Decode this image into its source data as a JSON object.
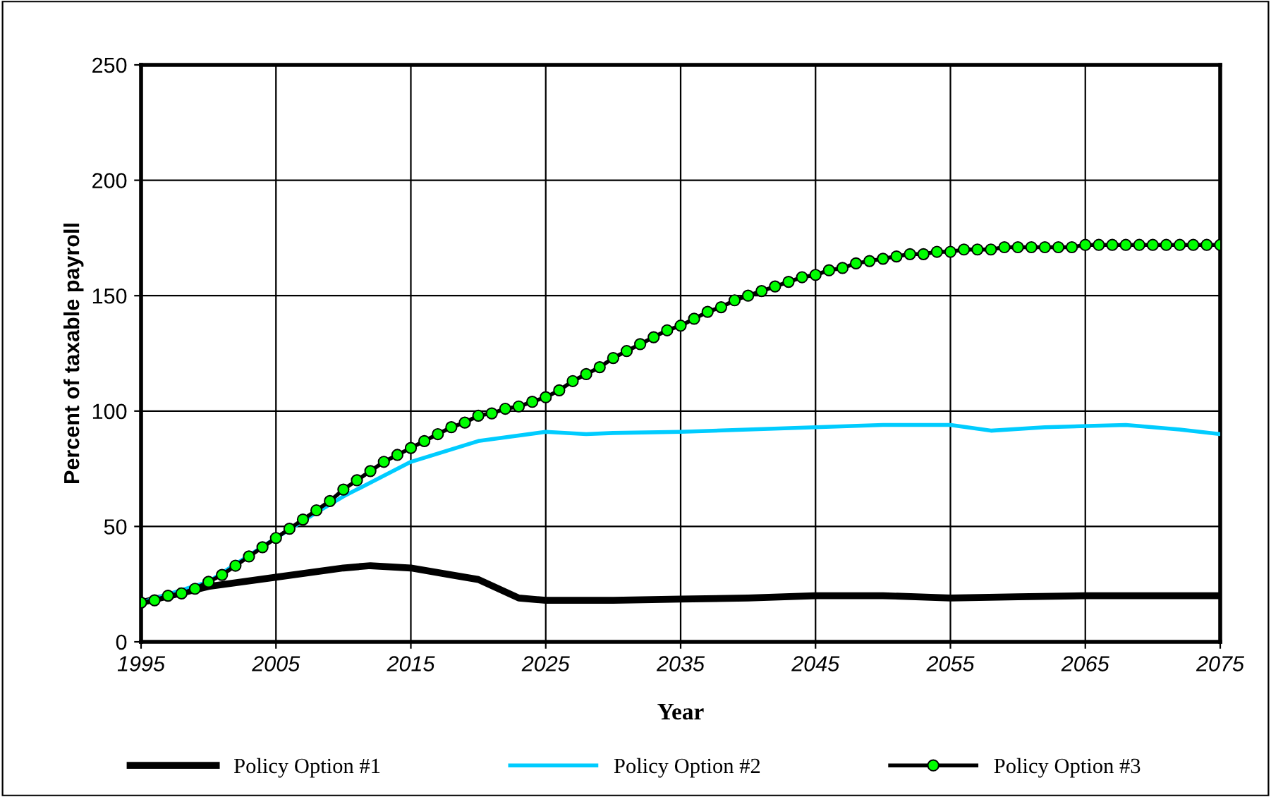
{
  "chart_data": {
    "type": "line",
    "xlabel": "Year",
    "ylabel": "Percent of taxable payroll",
    "xlim": [
      1995,
      2075
    ],
    "xticks": [
      1995,
      2005,
      2015,
      2025,
      2035,
      2045,
      2055,
      2065,
      2075
    ],
    "ylim": [
      0,
      250
    ],
    "yticks": [
      0,
      50,
      100,
      150,
      200,
      250
    ],
    "grid": true,
    "legend": "bottom",
    "series": [
      {
        "name": "Policy Option #1",
        "color": "#000000",
        "x": [
          1995,
          2000,
          2005,
          2010,
          2012,
          2015,
          2018,
          2020,
          2023,
          2025,
          2030,
          2035,
          2040,
          2045,
          2050,
          2055,
          2060,
          2065,
          2070,
          2075
        ],
        "values": [
          17,
          24,
          28,
          32,
          33,
          32,
          29,
          27,
          19,
          18,
          18,
          18.5,
          19,
          20,
          20,
          19,
          19.5,
          20,
          20,
          20
        ]
      },
      {
        "name": "Policy Option #2",
        "color": "#00ccff",
        "x": [
          1995,
          2000,
          2005,
          2008,
          2010,
          2015,
          2020,
          2025,
          2028,
          2030,
          2035,
          2040,
          2045,
          2050,
          2055,
          2058,
          2062,
          2068,
          2072,
          2075
        ],
        "values": [
          17,
          26,
          45,
          56,
          63,
          78,
          87,
          91,
          90,
          90.5,
          91,
          92,
          93,
          94,
          94,
          91.5,
          93,
          94,
          92,
          90
        ]
      },
      {
        "name": "Policy Option #3",
        "color": "#00ff00",
        "marker": "circle",
        "x": [
          1995,
          1996,
          1997,
          1998,
          1999,
          2000,
          2001,
          2002,
          2003,
          2004,
          2005,
          2006,
          2007,
          2008,
          2009,
          2010,
          2011,
          2012,
          2013,
          2014,
          2015,
          2016,
          2017,
          2018,
          2019,
          2020,
          2021,
          2022,
          2023,
          2024,
          2025,
          2026,
          2027,
          2028,
          2029,
          2030,
          2031,
          2032,
          2033,
          2034,
          2035,
          2036,
          2037,
          2038,
          2039,
          2040,
          2041,
          2042,
          2043,
          2044,
          2045,
          2046,
          2047,
          2048,
          2049,
          2050,
          2051,
          2052,
          2053,
          2054,
          2055,
          2056,
          2057,
          2058,
          2059,
          2060,
          2061,
          2062,
          2063,
          2064,
          2065,
          2066,
          2067,
          2068,
          2069,
          2070,
          2071,
          2072,
          2073,
          2074,
          2075
        ],
        "values": [
          17,
          18,
          20,
          21,
          23,
          26,
          29,
          33,
          37,
          41,
          45,
          49,
          53,
          57,
          61,
          66,
          70,
          74,
          78,
          81,
          84,
          87,
          90,
          93,
          95,
          98,
          99,
          101,
          102,
          104,
          106,
          109,
          113,
          116,
          119,
          123,
          126,
          129,
          132,
          135,
          137,
          140,
          143,
          145,
          148,
          150,
          152,
          154,
          156,
          158,
          159,
          161,
          162,
          164,
          165,
          166,
          167,
          168,
          168,
          169,
          169,
          170,
          170,
          170,
          171,
          171,
          171,
          171,
          171,
          171,
          172,
          172,
          172,
          172,
          172,
          172,
          172,
          172,
          172,
          172,
          172
        ]
      }
    ]
  }
}
